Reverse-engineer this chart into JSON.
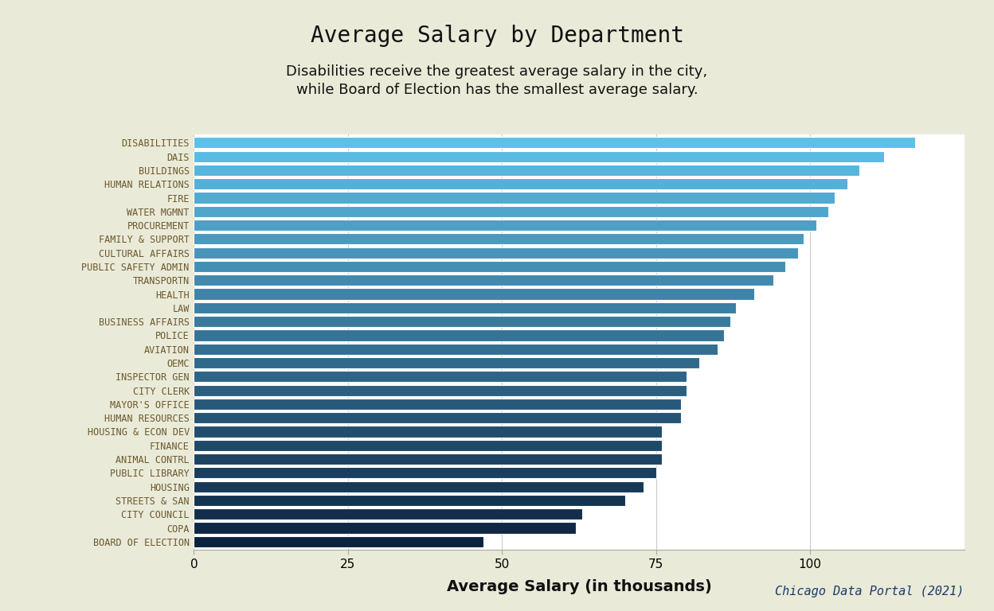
{
  "title": "Average Salary by Department",
  "subtitle": "Disabilities receive the greatest average salary in the city,\nwhile Board of Election has the smallest average salary.",
  "xlabel": "Average Salary (in thousands)",
  "caption": "Chicago Data Portal (2021)",
  "background_color": "#eaeaD8",
  "plot_bg_color": "#ffffff",
  "categories": [
    "DISABILITIES",
    "DAIS",
    "BUILDINGS",
    "HUMAN RELATIONS",
    "FIRE",
    "WATER MGMNT",
    "PROCUREMENT",
    "FAMILY & SUPPORT",
    "CULTURAL AFFAIRS",
    "PUBLIC SAFETY ADMIN",
    "TRANSPORTN",
    "HEALTH",
    "LAW",
    "BUSINESS AFFAIRS",
    "POLICE",
    "AVIATION",
    "OEMC",
    "INSPECTOR GEN",
    "CITY CLERK",
    "MAYOR'S OFFICE",
    "HUMAN RESOURCES",
    "HOUSING & ECON DEV",
    "FINANCE",
    "ANIMAL CONTRL",
    "PUBLIC LIBRARY",
    "HOUSING",
    "STREETS & SAN",
    "CITY COUNCIL",
    "COPA",
    "BOARD OF ELECTION"
  ],
  "values": [
    117,
    112,
    108,
    106,
    104,
    103,
    101,
    99,
    98,
    96,
    94,
    91,
    88,
    87,
    86,
    85,
    82,
    80,
    80,
    79,
    79,
    76,
    76,
    76,
    75,
    73,
    70,
    63,
    62,
    47
  ],
  "xlim": [
    0,
    125
  ],
  "xticks": [
    0,
    25,
    50,
    75,
    100
  ],
  "title_fontsize": 20,
  "subtitle_fontsize": 13,
  "label_fontsize": 8.5,
  "tick_fontsize": 11,
  "xlabel_fontsize": 14,
  "caption_fontsize": 11,
  "label_color": "#6b5a2e",
  "color_top": "#5dc0e8",
  "color_bottom": "#0c2340",
  "bar_height": 0.82,
  "grid_color": "#cccccc",
  "title_color": "#111111",
  "subtitle_color": "#111111"
}
